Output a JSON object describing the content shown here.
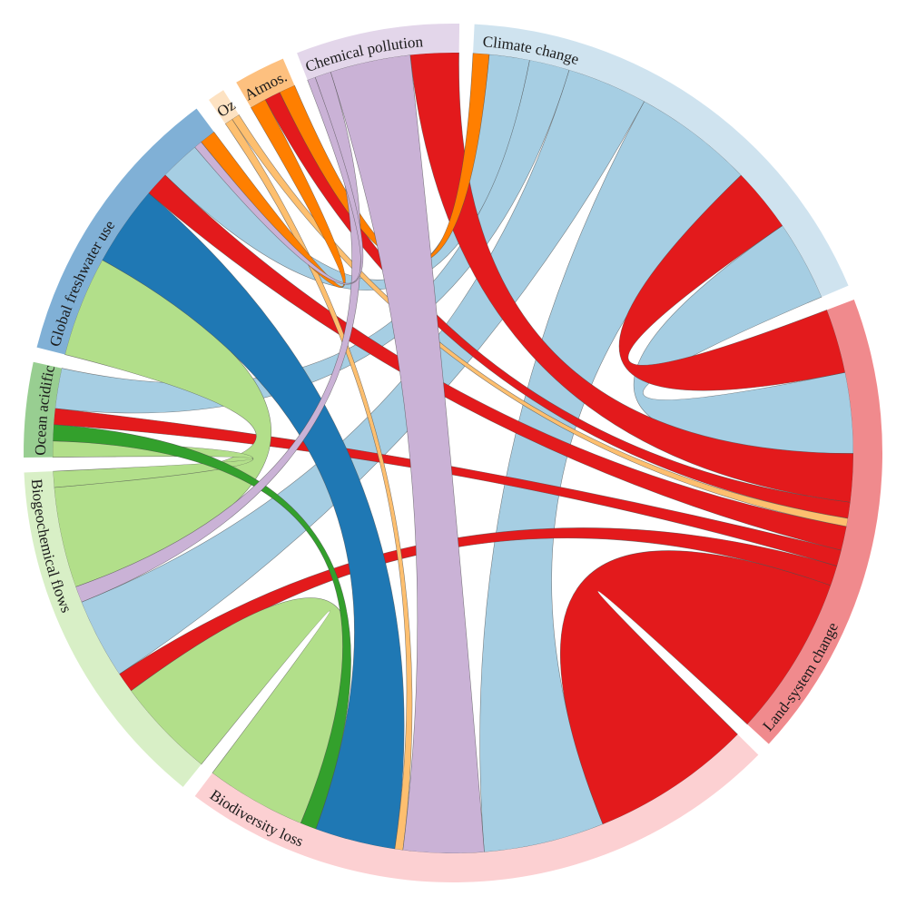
{
  "chart_data": {
    "type": "chord",
    "title": "",
    "groups": [
      {
        "key": "climate",
        "name": "Climate change",
        "arc_color": "#cfe3ef",
        "color": "#a6cee3"
      },
      {
        "key": "land",
        "name": "Land-system change",
        "arc_color": "#f08a8d",
        "color": "#e31a1c"
      },
      {
        "key": "biodiv",
        "name": "Biodiversity loss",
        "arc_color": "#fcd0d2",
        "color": "#e31a1c"
      },
      {
        "key": "biogeo",
        "name": "Biogeochemical flows",
        "arc_color": "#d8efc6",
        "color": "#b2df8a"
      },
      {
        "key": "ocean",
        "name": "Ocean acidific.",
        "arc_color": "#98ce91",
        "color": "#33a02c"
      },
      {
        "key": "fresh",
        "name": "Global freshwater use",
        "arc_color": "#80b0d6",
        "color": "#1f78b4"
      },
      {
        "key": "ozone",
        "name": "Ozone d.",
        "arc_color": "#fde2c2",
        "color": "#fdbf6f"
      },
      {
        "key": "aerosol",
        "name": "Atmos. aerosols",
        "arc_color": "#fdc07f",
        "color": "#ff7f00"
      },
      {
        "key": "chem",
        "name": "Chemical pollution",
        "arc_color": "#e3d6ea",
        "color": "#cab2d6"
      }
    ],
    "links": [
      {
        "source": "climate",
        "target": "biodiv",
        "value": 3
      },
      {
        "source": "climate",
        "target": "biogeo",
        "value": 2
      },
      {
        "source": "climate",
        "target": "land",
        "value": 2
      },
      {
        "source": "climate",
        "target": "ocean",
        "value": 1
      },
      {
        "source": "climate",
        "target": "fresh",
        "value": 1
      },
      {
        "source": "land",
        "target": "biodiv",
        "value": 4
      },
      {
        "source": "land",
        "target": "climate",
        "value": 1.6
      },
      {
        "source": "land",
        "target": "fresh",
        "value": 0.6
      },
      {
        "source": "land",
        "target": "biogeo",
        "value": 0.5
      },
      {
        "source": "land",
        "target": "ocean",
        "value": 0.4
      },
      {
        "source": "land",
        "target": "aerosol",
        "value": 0.4
      },
      {
        "source": "land",
        "target": "chem",
        "value": 1.2
      },
      {
        "source": "biogeo",
        "target": "biodiv",
        "value": 2.5
      },
      {
        "source": "biogeo",
        "target": "fresh",
        "value": 2.5
      },
      {
        "source": "biogeo",
        "target": "ocean",
        "value": 0.4
      },
      {
        "source": "ocean",
        "target": "biodiv",
        "value": 0.4
      },
      {
        "source": "fresh",
        "target": "biodiv",
        "value": 2
      },
      {
        "source": "ozone",
        "target": "biodiv",
        "value": 0.2
      },
      {
        "source": "ozone",
        "target": "land",
        "value": 0.2
      },
      {
        "source": "aerosol",
        "target": "climate",
        "value": 0.4
      },
      {
        "source": "aerosol",
        "target": "fresh",
        "value": 0.4
      },
      {
        "source": "chem",
        "target": "biodiv",
        "value": 2
      },
      {
        "source": "chem",
        "target": "biogeo",
        "value": 0.4
      },
      {
        "source": "chem",
        "target": "fresh",
        "value": 0.2
      }
    ]
  }
}
